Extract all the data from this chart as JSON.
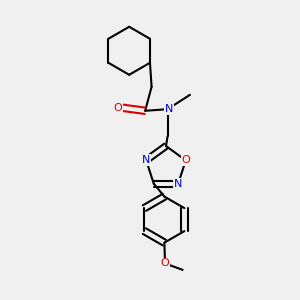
{
  "bg_color": "#f0f0f0",
  "atom_colors": {
    "C": "#000000",
    "N": "#0000cc",
    "O": "#dd0000"
  },
  "bond_color": "#000000",
  "bond_width": 1.5,
  "figsize": [
    3.0,
    3.0
  ],
  "dpi": 100
}
